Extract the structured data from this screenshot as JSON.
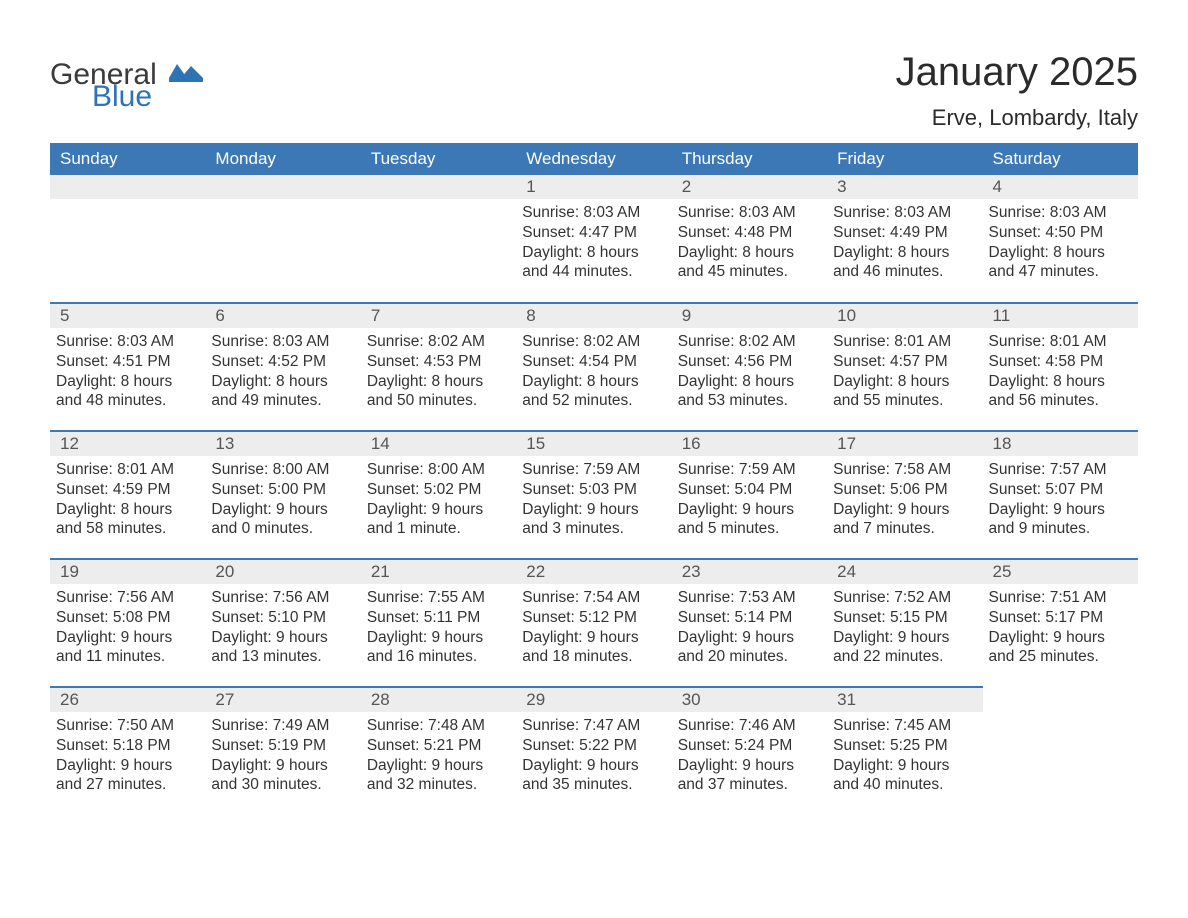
{
  "logo": {
    "word1": "General",
    "word2": "Blue",
    "accent_color": "#2e74b5",
    "text_color": "#3a3a3a"
  },
  "header": {
    "month_title": "January 2025",
    "location": "Erve, Lombardy, Italy"
  },
  "styling": {
    "header_bg": "#3b78b5",
    "header_text": "#ffffff",
    "daynum_bg": "#ededed",
    "daynum_text": "#555555",
    "row_divider": "#3b78b5",
    "body_text": "#333333",
    "font_family": "Arial",
    "title_fontsize_pt": 30,
    "location_fontsize_pt": 16,
    "weekday_fontsize_pt": 13,
    "daynum_fontsize_pt": 13,
    "cell_fontsize_pt": 11.5
  },
  "weekdays": [
    "Sunday",
    "Monday",
    "Tuesday",
    "Wednesday",
    "Thursday",
    "Friday",
    "Saturday"
  ],
  "weeks": [
    [
      null,
      null,
      null,
      {
        "n": "1",
        "sunrise": "Sunrise: 8:03 AM",
        "sunset": "Sunset: 4:47 PM",
        "dl1": "Daylight: 8 hours",
        "dl2": "and 44 minutes."
      },
      {
        "n": "2",
        "sunrise": "Sunrise: 8:03 AM",
        "sunset": "Sunset: 4:48 PM",
        "dl1": "Daylight: 8 hours",
        "dl2": "and 45 minutes."
      },
      {
        "n": "3",
        "sunrise": "Sunrise: 8:03 AM",
        "sunset": "Sunset: 4:49 PM",
        "dl1": "Daylight: 8 hours",
        "dl2": "and 46 minutes."
      },
      {
        "n": "4",
        "sunrise": "Sunrise: 8:03 AM",
        "sunset": "Sunset: 4:50 PM",
        "dl1": "Daylight: 8 hours",
        "dl2": "and 47 minutes."
      }
    ],
    [
      {
        "n": "5",
        "sunrise": "Sunrise: 8:03 AM",
        "sunset": "Sunset: 4:51 PM",
        "dl1": "Daylight: 8 hours",
        "dl2": "and 48 minutes."
      },
      {
        "n": "6",
        "sunrise": "Sunrise: 8:03 AM",
        "sunset": "Sunset: 4:52 PM",
        "dl1": "Daylight: 8 hours",
        "dl2": "and 49 minutes."
      },
      {
        "n": "7",
        "sunrise": "Sunrise: 8:02 AM",
        "sunset": "Sunset: 4:53 PM",
        "dl1": "Daylight: 8 hours",
        "dl2": "and 50 minutes."
      },
      {
        "n": "8",
        "sunrise": "Sunrise: 8:02 AM",
        "sunset": "Sunset: 4:54 PM",
        "dl1": "Daylight: 8 hours",
        "dl2": "and 52 minutes."
      },
      {
        "n": "9",
        "sunrise": "Sunrise: 8:02 AM",
        "sunset": "Sunset: 4:56 PM",
        "dl1": "Daylight: 8 hours",
        "dl2": "and 53 minutes."
      },
      {
        "n": "10",
        "sunrise": "Sunrise: 8:01 AM",
        "sunset": "Sunset: 4:57 PM",
        "dl1": "Daylight: 8 hours",
        "dl2": "and 55 minutes."
      },
      {
        "n": "11",
        "sunrise": "Sunrise: 8:01 AM",
        "sunset": "Sunset: 4:58 PM",
        "dl1": "Daylight: 8 hours",
        "dl2": "and 56 minutes."
      }
    ],
    [
      {
        "n": "12",
        "sunrise": "Sunrise: 8:01 AM",
        "sunset": "Sunset: 4:59 PM",
        "dl1": "Daylight: 8 hours",
        "dl2": "and 58 minutes."
      },
      {
        "n": "13",
        "sunrise": "Sunrise: 8:00 AM",
        "sunset": "Sunset: 5:00 PM",
        "dl1": "Daylight: 9 hours",
        "dl2": "and 0 minutes."
      },
      {
        "n": "14",
        "sunrise": "Sunrise: 8:00 AM",
        "sunset": "Sunset: 5:02 PM",
        "dl1": "Daylight: 9 hours",
        "dl2": "and 1 minute."
      },
      {
        "n": "15",
        "sunrise": "Sunrise: 7:59 AM",
        "sunset": "Sunset: 5:03 PM",
        "dl1": "Daylight: 9 hours",
        "dl2": "and 3 minutes."
      },
      {
        "n": "16",
        "sunrise": "Sunrise: 7:59 AM",
        "sunset": "Sunset: 5:04 PM",
        "dl1": "Daylight: 9 hours",
        "dl2": "and 5 minutes."
      },
      {
        "n": "17",
        "sunrise": "Sunrise: 7:58 AM",
        "sunset": "Sunset: 5:06 PM",
        "dl1": "Daylight: 9 hours",
        "dl2": "and 7 minutes."
      },
      {
        "n": "18",
        "sunrise": "Sunrise: 7:57 AM",
        "sunset": "Sunset: 5:07 PM",
        "dl1": "Daylight: 9 hours",
        "dl2": "and 9 minutes."
      }
    ],
    [
      {
        "n": "19",
        "sunrise": "Sunrise: 7:56 AM",
        "sunset": "Sunset: 5:08 PM",
        "dl1": "Daylight: 9 hours",
        "dl2": "and 11 minutes."
      },
      {
        "n": "20",
        "sunrise": "Sunrise: 7:56 AM",
        "sunset": "Sunset: 5:10 PM",
        "dl1": "Daylight: 9 hours",
        "dl2": "and 13 minutes."
      },
      {
        "n": "21",
        "sunrise": "Sunrise: 7:55 AM",
        "sunset": "Sunset: 5:11 PM",
        "dl1": "Daylight: 9 hours",
        "dl2": "and 16 minutes."
      },
      {
        "n": "22",
        "sunrise": "Sunrise: 7:54 AM",
        "sunset": "Sunset: 5:12 PM",
        "dl1": "Daylight: 9 hours",
        "dl2": "and 18 minutes."
      },
      {
        "n": "23",
        "sunrise": "Sunrise: 7:53 AM",
        "sunset": "Sunset: 5:14 PM",
        "dl1": "Daylight: 9 hours",
        "dl2": "and 20 minutes."
      },
      {
        "n": "24",
        "sunrise": "Sunrise: 7:52 AM",
        "sunset": "Sunset: 5:15 PM",
        "dl1": "Daylight: 9 hours",
        "dl2": "and 22 minutes."
      },
      {
        "n": "25",
        "sunrise": "Sunrise: 7:51 AM",
        "sunset": "Sunset: 5:17 PM",
        "dl1": "Daylight: 9 hours",
        "dl2": "and 25 minutes."
      }
    ],
    [
      {
        "n": "26",
        "sunrise": "Sunrise: 7:50 AM",
        "sunset": "Sunset: 5:18 PM",
        "dl1": "Daylight: 9 hours",
        "dl2": "and 27 minutes."
      },
      {
        "n": "27",
        "sunrise": "Sunrise: 7:49 AM",
        "sunset": "Sunset: 5:19 PM",
        "dl1": "Daylight: 9 hours",
        "dl2": "and 30 minutes."
      },
      {
        "n": "28",
        "sunrise": "Sunrise: 7:48 AM",
        "sunset": "Sunset: 5:21 PM",
        "dl1": "Daylight: 9 hours",
        "dl2": "and 32 minutes."
      },
      {
        "n": "29",
        "sunrise": "Sunrise: 7:47 AM",
        "sunset": "Sunset: 5:22 PM",
        "dl1": "Daylight: 9 hours",
        "dl2": "and 35 minutes."
      },
      {
        "n": "30",
        "sunrise": "Sunrise: 7:46 AM",
        "sunset": "Sunset: 5:24 PM",
        "dl1": "Daylight: 9 hours",
        "dl2": "and 37 minutes."
      },
      {
        "n": "31",
        "sunrise": "Sunrise: 7:45 AM",
        "sunset": "Sunset: 5:25 PM",
        "dl1": "Daylight: 9 hours",
        "dl2": "and 40 minutes."
      },
      null
    ]
  ]
}
